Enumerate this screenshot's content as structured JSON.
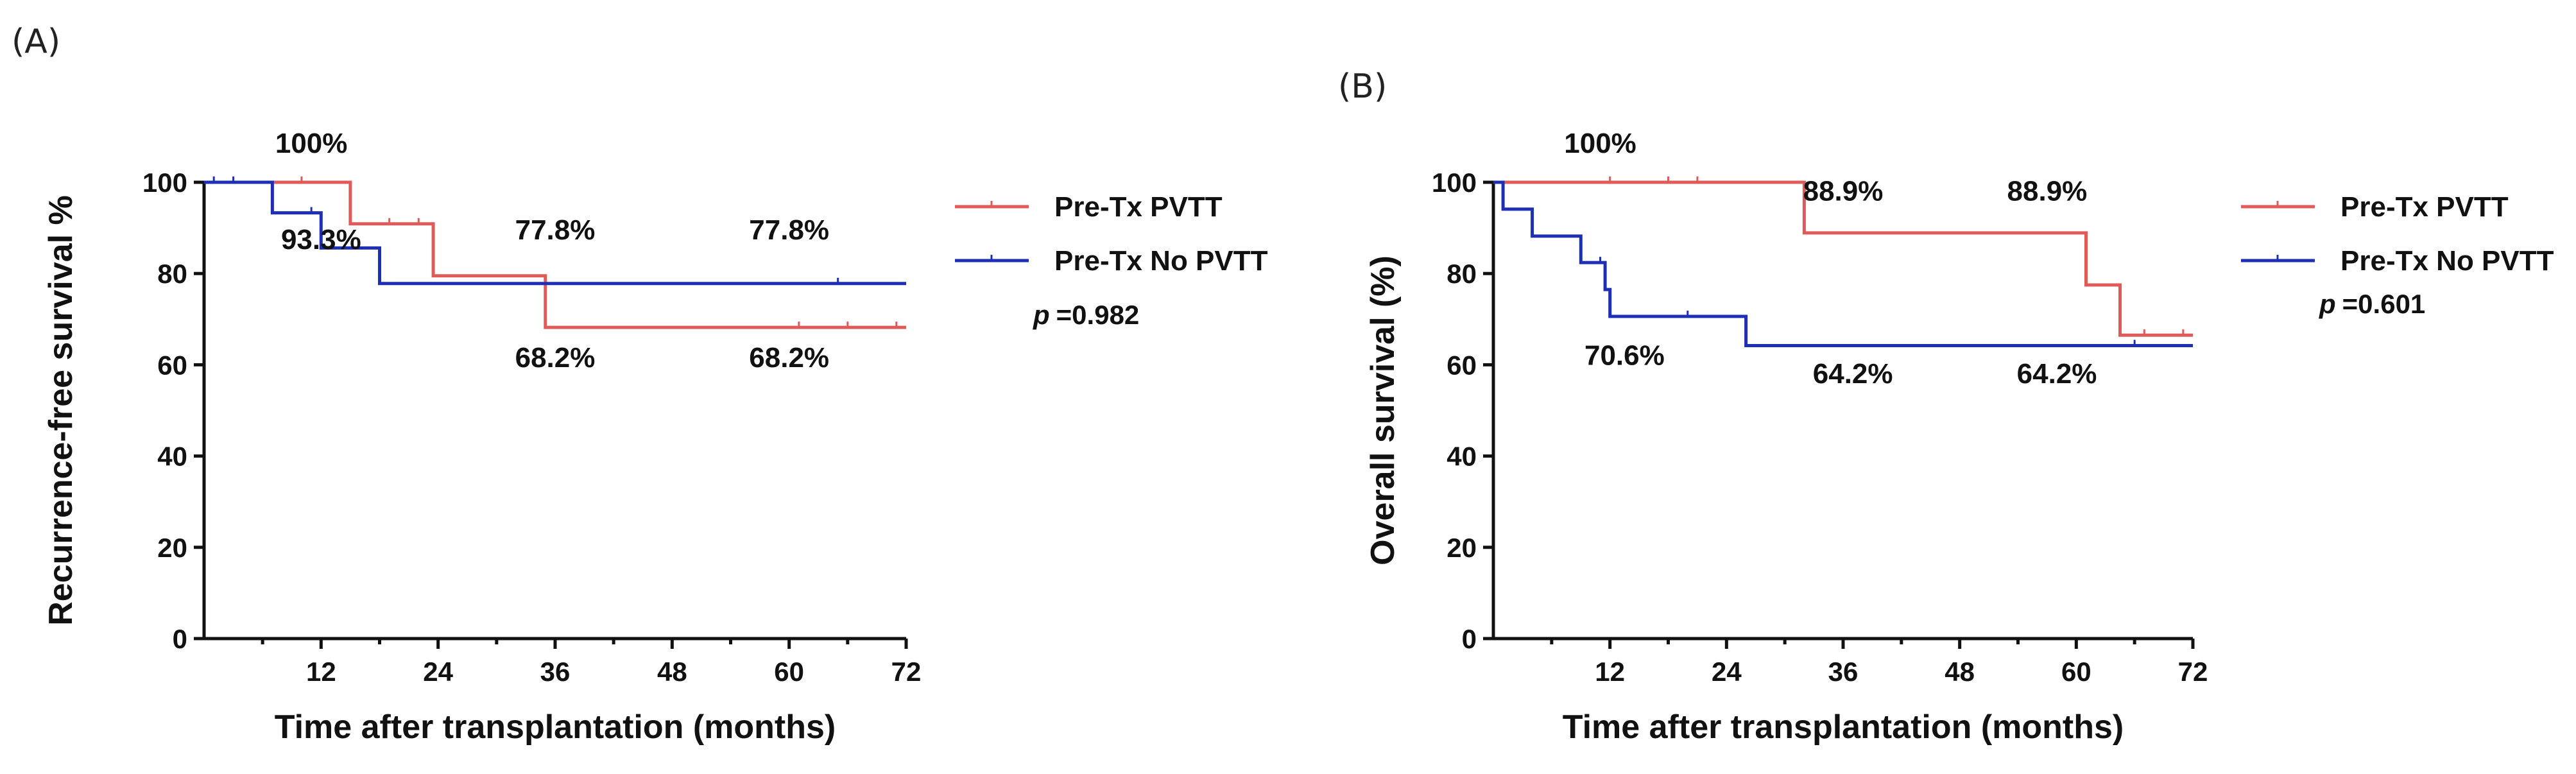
{
  "figure": {
    "colors": {
      "red": "#e05a5a",
      "blue": "#1f2fb4",
      "axis": "#111111"
    }
  },
  "chart_data": [
    {
      "type": "line",
      "subtype": "kaplan-meier",
      "panel": "(A)",
      "title": "",
      "xlabel": "Time after transplantation (months)",
      "ylabel": "Recurrence-free survival %",
      "xlim": [
        0,
        72
      ],
      "ylim": [
        0,
        100
      ],
      "xticks": [
        12,
        24,
        36,
        48,
        60,
        72
      ],
      "yticks": [
        0,
        20,
        40,
        60,
        80,
        100
      ],
      "series": [
        {
          "name": "Pre-Tx PVTT",
          "color": "#e05a5a",
          "steps": [
            [
              7,
              100
            ],
            [
              15,
              100
            ],
            [
              15,
              90.9
            ],
            [
              23.5,
              90.9
            ],
            [
              23.5,
              79.5
            ],
            [
              35,
              79.5
            ],
            [
              35,
              68.2
            ],
            [
              72,
              68.2
            ]
          ],
          "censors": [
            [
              10,
              100
            ],
            [
              19,
              90.9
            ],
            [
              22,
              90.9
            ],
            [
              61,
              68.2
            ],
            [
              66,
              68.2
            ],
            [
              71,
              68.2
            ]
          ]
        },
        {
          "name": "Pre-Tx No PVTT",
          "color": "#1f2fb4",
          "steps": [
            [
              0,
              100
            ],
            [
              7,
              100
            ],
            [
              7,
              93.3
            ],
            [
              12,
              93.3
            ],
            [
              12,
              85.6
            ],
            [
              18,
              85.6
            ],
            [
              18,
              77.8
            ],
            [
              72,
              77.8
            ]
          ],
          "censors": [
            [
              1,
              100
            ],
            [
              3,
              100
            ],
            [
              11,
              93.3
            ],
            [
              65,
              77.8
            ]
          ]
        }
      ],
      "annotations": [
        {
          "text": "100%",
          "x": 11,
          "y": 106.5
        },
        {
          "text": "93.3%",
          "x": 12,
          "y": 85.4
        },
        {
          "text": "77.8%",
          "x": 36,
          "y": 87.5
        },
        {
          "text": "77.8%",
          "x": 60,
          "y": 87.5
        },
        {
          "text": "68.2%",
          "x": 36,
          "y": 59.5
        },
        {
          "text": "68.2%",
          "x": 60,
          "y": 59.5
        }
      ],
      "legend": {
        "position": "right",
        "entries": [
          "Pre-Tx PVTT",
          "Pre-Tx No PVTT"
        ],
        "p_label": "p",
        "p_value": "=0.982"
      }
    },
    {
      "type": "line",
      "subtype": "kaplan-meier",
      "panel": "(B)",
      "title": "",
      "xlabel": "Time after transplantation (months)",
      "ylabel": "Overall survival (%)",
      "xlim": [
        0,
        72
      ],
      "ylim": [
        0,
        100
      ],
      "xticks": [
        12,
        24,
        36,
        48,
        60,
        72
      ],
      "yticks": [
        0,
        20,
        40,
        60,
        80,
        100
      ],
      "series": [
        {
          "name": "Pre-Tx PVTT",
          "color": "#e05a5a",
          "steps": [
            [
              0,
              100
            ],
            [
              32,
              100
            ],
            [
              32,
              88.9
            ],
            [
              61,
              88.9
            ],
            [
              61,
              77.5
            ],
            [
              64.5,
              77.5
            ],
            [
              64.5,
              66.5
            ],
            [
              72,
              66.5
            ]
          ],
          "censors": [
            [
              12,
              100
            ],
            [
              18,
              100
            ],
            [
              21,
              100
            ],
            [
              67,
              66.5
            ],
            [
              71,
              66.5
            ]
          ]
        },
        {
          "name": "Pre-Tx No PVTT",
          "color": "#1f2fb4",
          "steps": [
            [
              0,
              100
            ],
            [
              1,
              100
            ],
            [
              1,
              94.1
            ],
            [
              4,
              94.1
            ],
            [
              4,
              88.2
            ],
            [
              9,
              88.2
            ],
            [
              9,
              82.4
            ],
            [
              11.5,
              82.4
            ],
            [
              11.5,
              76.5
            ],
            [
              12,
              76.5
            ],
            [
              12,
              70.6
            ],
            [
              26,
              70.6
            ],
            [
              26,
              64.2
            ],
            [
              72,
              64.2
            ]
          ],
          "censors": [
            [
              11,
              82.4
            ],
            [
              20,
              70.6
            ],
            [
              66,
              64.2
            ]
          ]
        }
      ],
      "annotations": [
        {
          "text": "100%",
          "x": 11,
          "y": 106.5
        },
        {
          "text": "88.9%",
          "x": 36,
          "y": 96
        },
        {
          "text": "88.9%",
          "x": 57,
          "y": 96
        },
        {
          "text": "70.6%",
          "x": 13.5,
          "y": 60
        },
        {
          "text": "64.2%",
          "x": 37,
          "y": 56
        },
        {
          "text": "64.2%",
          "x": 58,
          "y": 56
        }
      ],
      "legend": {
        "position": "right",
        "entries": [
          "Pre-Tx PVTT",
          "Pre-Tx No PVTT"
        ],
        "p_label": "p",
        "p_value": "=0.601"
      }
    }
  ]
}
